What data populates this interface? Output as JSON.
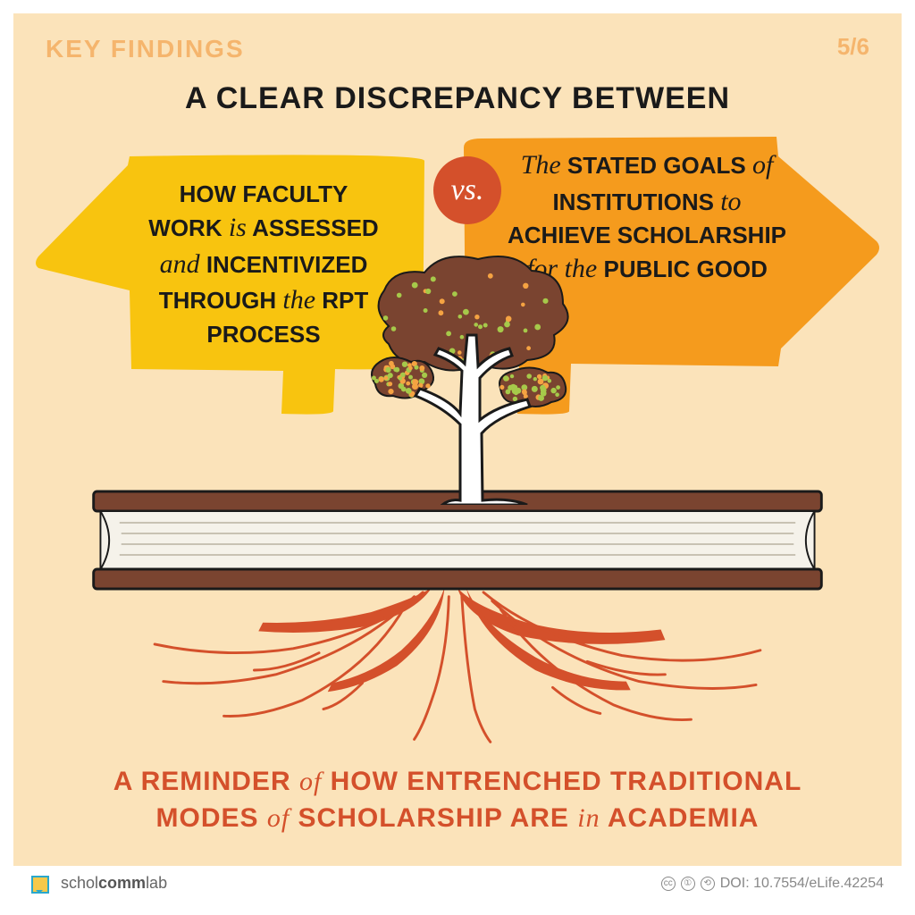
{
  "colors": {
    "background": "#fbe3ba",
    "border": "#ffffff",
    "muted_orange": "#f5b56d",
    "text_dark": "#1a1a1a",
    "yellow_arrow": "#f8c40f",
    "orange_arrow": "#f59b1d",
    "vs_circle": "#d4502b",
    "tree_foliage": "#7a4430",
    "tree_trunk": "#ffffff",
    "tree_outline": "#1a1a1a",
    "dot_green": "#a6c94a",
    "dot_orange": "#f5a342",
    "book_cover": "#7a4430",
    "book_pages": "#f5f2ea",
    "book_lines": "#c8c2b3",
    "roots": "#d4502b",
    "footer_text": "#666666"
  },
  "header": {
    "label": "KEY FINDINGS",
    "page": "5/6"
  },
  "title": "A CLEAR DISCREPANCY BETWEEN",
  "vs_label": "vs.",
  "left_arrow": {
    "lines": [
      {
        "plain_pre": "HOW FACULTY",
        "cursive": "",
        "plain_post": ""
      },
      {
        "plain_pre": "WORK ",
        "cursive": "is",
        "plain_post": " ASSESSED"
      },
      {
        "plain_pre": "",
        "cursive": "and",
        "plain_post": " INCENTIVIZED"
      },
      {
        "plain_pre": "THROUGH ",
        "cursive": "the",
        "plain_post": " RPT"
      },
      {
        "plain_pre": "PROCESS",
        "cursive": "",
        "plain_post": ""
      }
    ]
  },
  "right_arrow": {
    "lines": [
      {
        "plain_pre": "",
        "cursive": "The",
        "plain_post": " STATED GOALS ",
        "cursive2": "of"
      },
      {
        "plain_pre": "INSTITUTIONS ",
        "cursive": "to",
        "plain_post": ""
      },
      {
        "plain_pre": "ACHIEVE SCHOLARSHIP",
        "cursive": "",
        "plain_post": ""
      },
      {
        "plain_pre": "",
        "cursive": "for the",
        "plain_post": " PUBLIC GOOD"
      }
    ]
  },
  "bottom": {
    "line1_pre": "A REMINDER ",
    "line1_cur": "of",
    "line1_post": " HOW ENTRENCHED TRADITIONAL",
    "line2_pre": "MODES ",
    "line2_cur": "of",
    "line2_mid": " SCHOLARSHIP ARE ",
    "line2_cur2": "in",
    "line2_post": " ACADEMIA"
  },
  "footer": {
    "brand_light": "schol",
    "brand_bold": "comm",
    "brand_light2": "lab",
    "doi": "DOI: 10.7554/eLife.42254"
  },
  "tree": {
    "dot_count": 120
  }
}
